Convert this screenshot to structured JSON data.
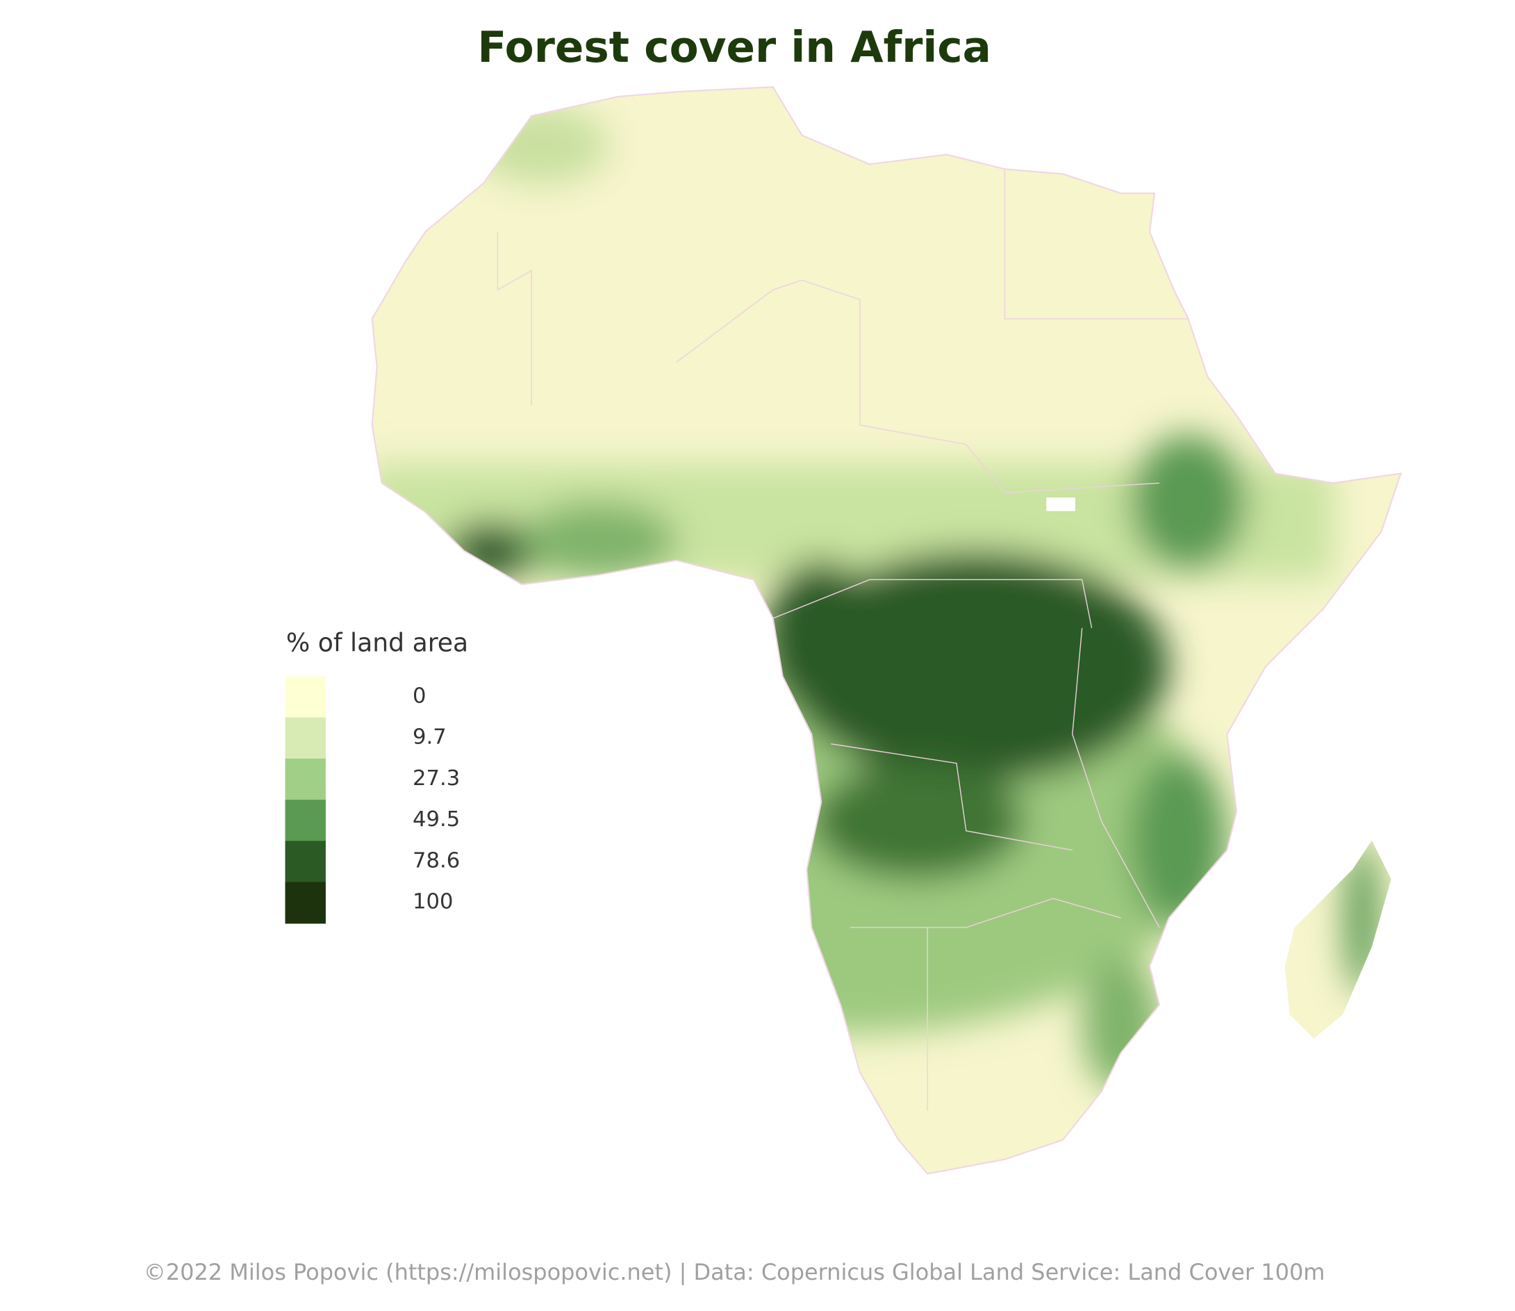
{
  "title": "Forest cover in Africa",
  "legend": {
    "title": "% of land area",
    "items": [
      {
        "label": 0,
        "color": "#ffffd4"
      },
      {
        "label": 9.7,
        "color": "#d9ebb4"
      },
      {
        "label": 27.3,
        "color": "#a0cf87"
      },
      {
        "label": 49.5,
        "color": "#5a9a52"
      },
      {
        "label": 78.6,
        "color": "#2c5a25"
      },
      {
        "label": 100,
        "color": "#1c330d"
      }
    ]
  },
  "credit": "©2022 Milos Popovic (https://milospopovic.net) | Data:  Copernicus Global Land Service: Land Cover 100m"
}
